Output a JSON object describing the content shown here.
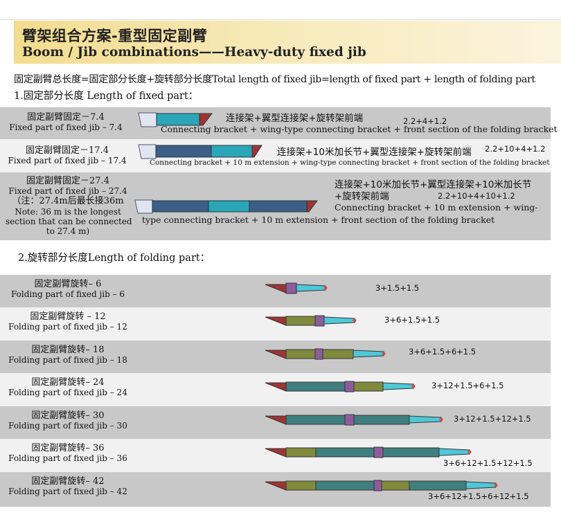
{
  "title": {
    "cn": "臂架组合方案-重型固定副臂",
    "en": "Boom / Jib combinations——Heavy-duty fixed jib"
  },
  "formula": "固定副臂总长度=固定部分长度+旋转部分长度Total length of fixed jib=length of fixed part + length of folding part",
  "fixed_heading": "1.固定部分长度 Length of fixed part：",
  "fixed_rows": [
    {
      "label_cn": "固定副臂固定－7.4",
      "label_en": "Fixed part of fixed jib – 7.4",
      "desc_cn": "连接架+翼型连接架+旋转架前端",
      "desc_en": "Connecting bracket + wing-type connecting bracket + front section of the folding bracket",
      "sum": "2.2+4+1.2"
    },
    {
      "label_cn": "固定副臂固定－17.4",
      "label_en": "Fixed part of fixed jib – 17.4",
      "desc_cn": "连接架+10米加长节+翼型连接架+旋转架前端",
      "desc_en": "Connecting bracket + 10 m extension + wing-type connecting bracket + front section of the folding bracket",
      "sum": "2.2+10+4+1.2"
    },
    {
      "label_cn": "固定副臂固定－27.4",
      "label_en": "Fixed part of fixed jib – 27.4",
      "note_cn": "（注：27.4m后最长接36m",
      "note_en1": "Note: 36 m is the longest",
      "note_en2": "section that can be connected",
      "note_en3": "to 27.4 m)",
      "desc_cn1": "连接架+10米加长节+翼型连接架+10米加长节",
      "desc_cn2": "+旋转架前端",
      "desc_en1": "Connecting bracket + 10 m extension + wing-",
      "desc_en2": "type connecting bracket + 10 m extension + front section of the folding bracket",
      "sum": "2.2+10+4+10+1.2"
    }
  ],
  "folding_heading": "2.旋转部分长度Length of folding part：",
  "folding_rows": [
    {
      "label_cn": "固定副臂旋转– 6",
      "label_en": "Folding part of fixed jib – 6",
      "sum": "3+1.5+1.5"
    },
    {
      "label_cn": "固定副臂旋转 – 12",
      "label_en": "Folding part of fixed jib – 12",
      "sum": "3+6+1.5+1.5"
    },
    {
      "label_cn": "固定副臂旋转– 18",
      "label_en": "Folding part of fixed jib – 18",
      "sum": "3+6+1.5+6+1.5"
    },
    {
      "label_cn": "固定副臂旋转– 24",
      "label_en": "Folding part of fixed jib – 24",
      "sum": "3+12+1.5+6+1.5"
    },
    {
      "label_cn": "固定副臂旋转– 30",
      "label_en": "Folding part of fixed jib – 30",
      "sum": "3+12+1.5+12+1.5"
    },
    {
      "label_cn": "固定副臂旋转– 36",
      "label_en": "Folding part of fixed jib – 36",
      "sum": "3+6+12+1.5+12+1.5"
    },
    {
      "label_cn": "固定副臂旋转– 42",
      "label_en": "Folding part of fixed jib – 42",
      "sum": "3+6+12+1.5+6+12+1.5"
    }
  ],
  "colors": {
    "title_band": "#f2dc8e",
    "row_grey": "#c8c8c8",
    "row_light": "#f1f1f1",
    "bracket_head": "#9e3535",
    "section_3m": "#9e3535",
    "section_6m": "#7f8a3c",
    "section_12m": "#3f7f7f",
    "section_1_5m": "#8e5c9e",
    "tip": "#4ec8d8",
    "fixed_10m": "#3d5f86",
    "fixed_wing": "#2aa7b6",
    "fixed_connector": "#dfe6f2"
  }
}
